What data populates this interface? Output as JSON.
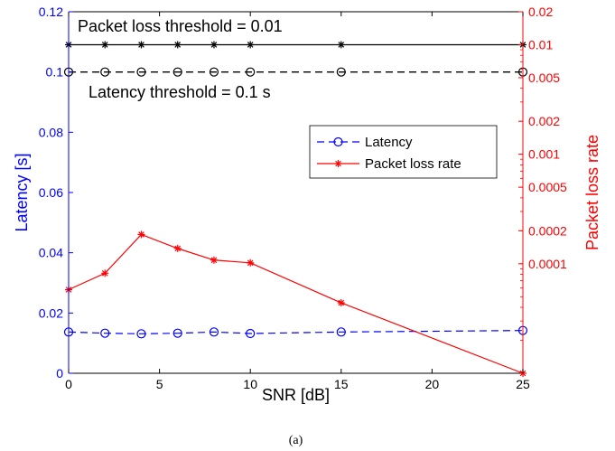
{
  "chart_data": {
    "type": "line",
    "caption": "(a)",
    "xlabel": "SNR [dB]",
    "ylabel_left": "Latency [s]",
    "ylabel_right": "Packet loss rate",
    "xlim": [
      0,
      25
    ],
    "ylim_left": [
      0,
      0.12
    ],
    "ylim_right": [
      1e-05,
      0.02
    ],
    "right_scale": "log",
    "grid": false,
    "legend_position": "upper-right-inside",
    "x_ticks": [
      "0",
      "5",
      "10",
      "15",
      "20",
      "25"
    ],
    "x_tick_values": [
      0,
      5,
      10,
      15,
      20,
      25
    ],
    "left_ticks": [
      "0",
      "0.02",
      "0.04",
      "0.06",
      "0.08",
      "0.1",
      "0.12"
    ],
    "left_tick_values": [
      0,
      0.02,
      0.04,
      0.06,
      0.08,
      0.1,
      0.12
    ],
    "right_ticks": [
      "0.0001",
      "0.0002",
      "0.0005",
      "0.001",
      "0.002",
      "0.005",
      "0.01",
      "0.02"
    ],
    "right_tick_values": [
      0.0001,
      0.0002,
      0.0005,
      0.001,
      0.002,
      0.005,
      0.01,
      0.02
    ],
    "x": [
      0,
      2,
      4,
      6,
      8,
      10,
      15,
      25
    ],
    "series": [
      {
        "name": "Latency",
        "axis": "left",
        "color": "#0000ff",
        "style": "dashed",
        "marker": "circle",
        "values": [
          0.0137,
          0.0133,
          0.0131,
          0.0133,
          0.0137,
          0.0132,
          0.0137,
          0.0142
        ]
      },
      {
        "name": "Packet loss rate",
        "axis": "right",
        "color": "#ff0000",
        "style": "solid",
        "marker": "star",
        "values": [
          5.8e-05,
          8.2e-05,
          0.000185,
          0.000138,
          0.000108,
          0.000102,
          4.4e-05,
          1e-05
        ]
      }
    ],
    "thresholds": [
      {
        "label": "Packet loss threshold = 0.01",
        "axis": "right",
        "value": 0.01,
        "style": "solid",
        "marker": "star",
        "color": "#000000",
        "x": [
          0,
          2,
          4,
          6,
          8,
          10,
          15,
          25
        ]
      },
      {
        "label": "Latency threshold = 0.1 s",
        "axis": "left",
        "value": 0.1,
        "style": "dashed",
        "marker": "circle",
        "color": "#000000",
        "x": [
          0,
          2,
          4,
          6,
          8,
          10,
          15,
          25
        ]
      }
    ]
  }
}
